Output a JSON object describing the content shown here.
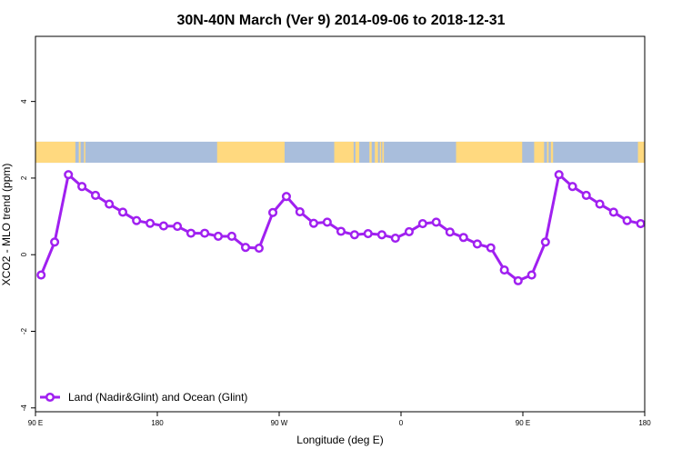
{
  "chart_data": {
    "type": "line",
    "title": "30N-40N March (Ver 9)   2014-09-06 to 2018-12-31",
    "xlabel": "Longitude (deg E)",
    "ylabel": "XCO2 - MLO trend (ppm)",
    "xlim": [
      -90,
      180
    ],
    "ylim": [
      -4.1,
      5.7
    ],
    "x_ticks": [
      {
        "value": -90,
        "label": "90 E"
      },
      {
        "value": -36,
        "label": "180"
      },
      {
        "value": 18,
        "label": "90 W"
      },
      {
        "value": 72,
        "label": "0"
      },
      {
        "value": 126,
        "label": "90 E"
      },
      {
        "value": 180,
        "label": "180"
      }
    ],
    "y_ticks": [
      {
        "value": -4,
        "label": "-4"
      },
      {
        "value": -2,
        "label": "-2"
      },
      {
        "value": 0,
        "label": "0"
      },
      {
        "value": 2,
        "label": "2"
      },
      {
        "value": 4,
        "label": "4"
      }
    ],
    "grid": false,
    "legend_position": "bottom-left",
    "series": [
      {
        "name": "Land (Nadir&Glint) and Ocean (Glint)",
        "color": "#a020f0",
        "marker": "open-circle",
        "x": [
          -87.5,
          -81.5,
          -75.4,
          -69.4,
          -63.4,
          -57.3,
          -51.3,
          -45.2,
          -39.2,
          -33.2,
          -27.1,
          -21.1,
          -15.0,
          -9.0,
          -3.0,
          3.1,
          9.1,
          15.2,
          21.2,
          27.2,
          33.3,
          39.3,
          45.4,
          51.4,
          57.4,
          63.5,
          69.5,
          75.6,
          81.6,
          87.6,
          93.7,
          99.7,
          105.8,
          111.8,
          117.8,
          123.9,
          129.9,
          136.0,
          142.0,
          148.0,
          154.1,
          160.1,
          166.2,
          172.2,
          178.2
        ],
        "values": [
          -0.53,
          0.33,
          2.09,
          1.78,
          1.55,
          1.32,
          1.11,
          0.89,
          0.82,
          0.75,
          0.74,
          0.56,
          0.56,
          0.48,
          0.48,
          0.19,
          0.17,
          1.1,
          1.52,
          1.12,
          0.82,
          0.85,
          0.61,
          0.52,
          0.55,
          0.52,
          0.43,
          0.6,
          0.81,
          0.85,
          0.59,
          0.45,
          0.28,
          0.18,
          -0.4,
          -0.68,
          -0.53,
          0.33,
          2.09,
          1.78,
          1.55,
          1.32,
          1.11,
          0.89,
          0.81
        ]
      }
    ],
    "map_strip": {
      "y_range": [
        2.4,
        2.95
      ],
      "land_color": "#ffd97f",
      "ocean_color": "#a9bedc",
      "land_segments": [
        [
          -90,
          -72.3
        ],
        [
          -70.8,
          -70.0
        ],
        [
          -68.5,
          -67.9
        ],
        [
          -9.5,
          20.4
        ],
        [
          42.4,
          51.0
        ],
        [
          51.8,
          53.5
        ],
        [
          58.0,
          59.0
        ],
        [
          60.4,
          61.8
        ],
        [
          62.6,
          63.2
        ],
        [
          63.7,
          64.4
        ],
        [
          96.4,
          125.7
        ],
        [
          131.0,
          135.4
        ],
        [
          136.7,
          137.4
        ],
        [
          138.4,
          139.4
        ],
        [
          177.0,
          180
        ]
      ]
    }
  }
}
